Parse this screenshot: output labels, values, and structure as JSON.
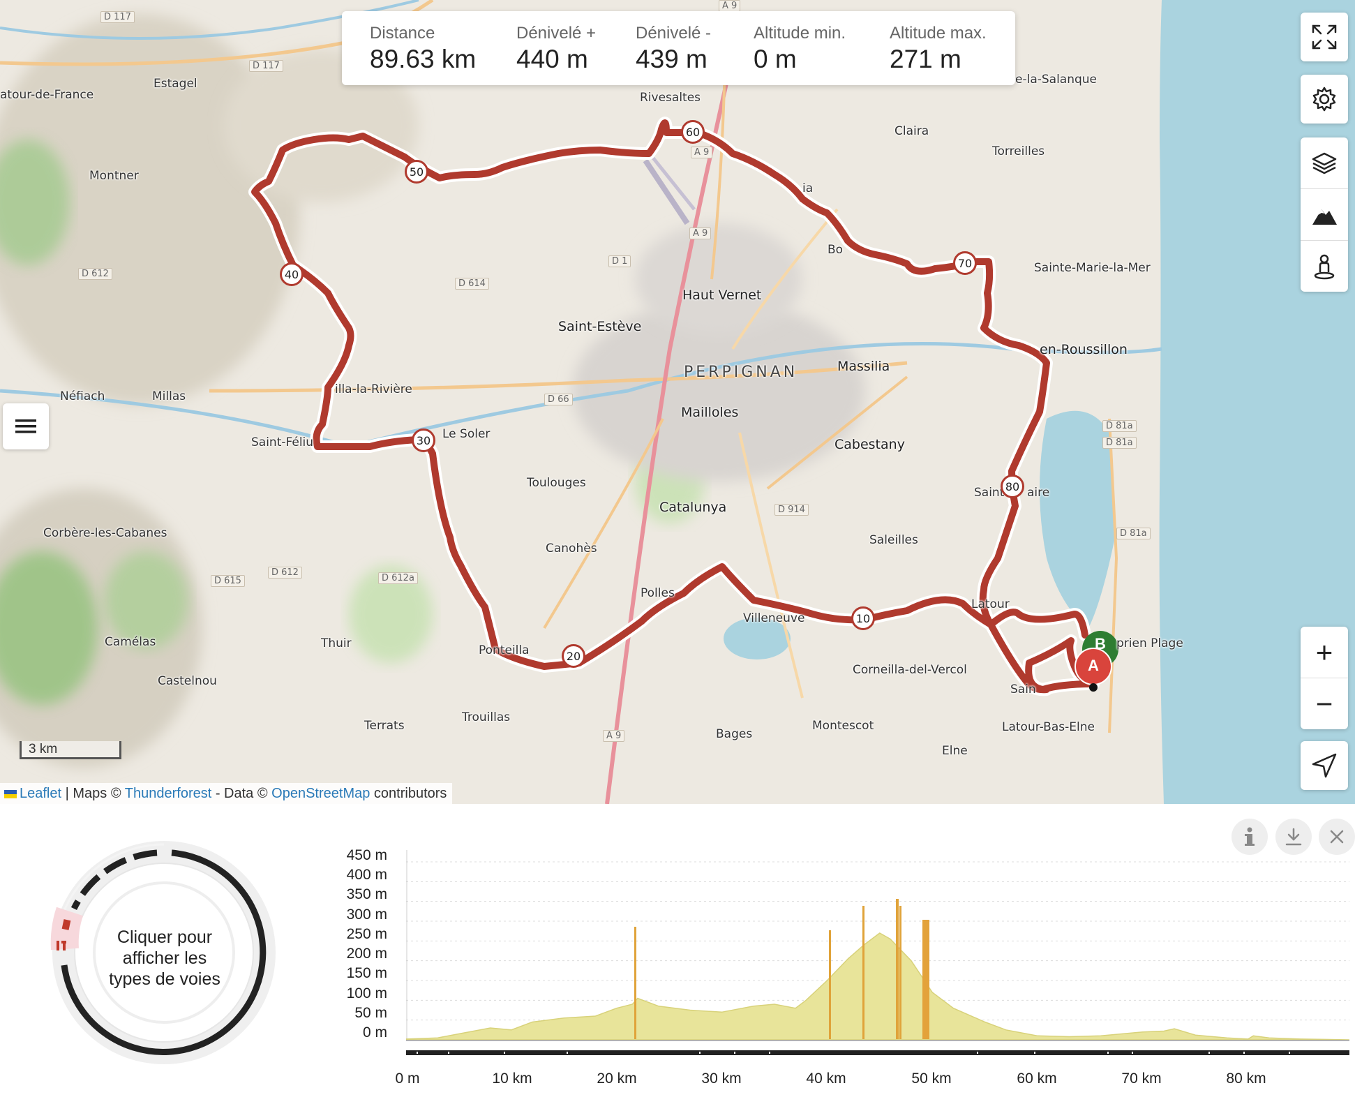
{
  "stats": {
    "distance": {
      "label": "Distance",
      "value": "89.63 km"
    },
    "gain": {
      "label": "Dénivelé +",
      "value": "440 m"
    },
    "loss": {
      "label": "Dénivelé -",
      "value": "439 m"
    },
    "alt_min": {
      "label": "Altitude min.",
      "value": "0 m"
    },
    "alt_max": {
      "label": "Altitude max.",
      "value": "271 m"
    }
  },
  "map": {
    "places": [
      {
        "name": "Estagel"
      },
      {
        "name": "atour-de-France"
      },
      {
        "name": "Montner"
      },
      {
        "name": "Rivesaltes"
      },
      {
        "name": "Claira"
      },
      {
        "name": "Torreilles"
      },
      {
        "name": "e-la-Salanque"
      },
      {
        "name": "Sainte-Marie-la-Mer"
      },
      {
        "name": "Haut Vernet"
      },
      {
        "name": "Saint-Estève"
      },
      {
        "name": "PERPIGNAN"
      },
      {
        "name": "Massilia"
      },
      {
        "name": "en-Roussillon"
      },
      {
        "name": "Néfiach"
      },
      {
        "name": "Millas"
      },
      {
        "name": "illa-la-Rivière"
      },
      {
        "name": "Saint-Féliu"
      },
      {
        "name": "Le Soler"
      },
      {
        "name": "Mailloles"
      },
      {
        "name": "Cabestany"
      },
      {
        "name": "Toulouges"
      },
      {
        "name": "Catalunya"
      },
      {
        "name": "Corbère-les-Cabanes"
      },
      {
        "name": "Canohès"
      },
      {
        "name": "Saleilles"
      },
      {
        "name": "Saint"
      },
      {
        "name": "aire"
      },
      {
        "name": "Polles"
      },
      {
        "name": "Villeneuve"
      },
      {
        "name": "Latour"
      },
      {
        "name": "Camélas"
      },
      {
        "name": "Thuir"
      },
      {
        "name": "Ponteilla"
      },
      {
        "name": "Castelnou"
      },
      {
        "name": "Corneilla-del-Vercol"
      },
      {
        "name": "Sain"
      },
      {
        "name": "Latour-Bas-Elne"
      },
      {
        "name": "Terrats"
      },
      {
        "name": "Trouillas"
      },
      {
        "name": "Montescot"
      },
      {
        "name": "Bages"
      },
      {
        "name": "Elne"
      },
      {
        "name": "prien Plage"
      },
      {
        "name": "Bo"
      },
      {
        "name": "ia"
      }
    ],
    "roads": [
      "D 117",
      "D 117",
      "D 612",
      "D 614",
      "D 1",
      "A 9",
      "A 9",
      "D 66",
      "D 914",
      "D 612",
      "D 612a",
      "D 615",
      "A 9",
      "D 81a",
      "D 81a",
      "D 81a",
      "A 9"
    ],
    "km_markers": [
      "10",
      "20",
      "30",
      "40",
      "50",
      "60",
      "70",
      "80"
    ],
    "start_marker": "A",
    "end_marker": "B",
    "route_color": "#b03a2e",
    "sea_color": "#aad3df",
    "scale": "3 km"
  },
  "attribution": {
    "leaflet": "Leaflet",
    "sep1": " | Maps © ",
    "thunderforest": "Thunderforest",
    "sep2": " - Data © ",
    "osm": "OpenStreetMap",
    "contrib": " contributors"
  },
  "controls": {
    "fullscreen_icon": "fullscreen-icon",
    "settings_icon": "gear-icon",
    "layers_icon": "layers-icon",
    "elevation_icon": "mountain-icon",
    "pegman_icon": "person-icon",
    "zoom_in": "+",
    "zoom_out": "−",
    "locate_icon": "navigation-arrow-icon",
    "menu_icon": "hamburger-icon"
  },
  "donut": {
    "label_line1": "Cliquer pour",
    "label_line2": "afficher les",
    "label_line3": "types de voies"
  },
  "bottom_tools": [
    "info-icon",
    "download-icon",
    "close-icon"
  ],
  "chart_data": {
    "type": "area",
    "title": "",
    "xlabel": "",
    "ylabel": "",
    "x_ticks": [
      "0 m",
      "10 km",
      "20 km",
      "30 km",
      "40 km",
      "50 km",
      "60 km",
      "70 km",
      "80 km"
    ],
    "y_ticks": [
      "450 m",
      "400 m",
      "350 m",
      "300 m",
      "250 m",
      "200 m",
      "150 m",
      "100 m",
      "50 m",
      "0 m"
    ],
    "xlim": [
      0,
      89.63
    ],
    "ylim": [
      0,
      450
    ],
    "grid": true,
    "fill_color": "#e8e49a",
    "series": [
      {
        "x": [
          0,
          3,
          5,
          8,
          10,
          12,
          15,
          18,
          20,
          21.5,
          22,
          24,
          27,
          30,
          33,
          35,
          37,
          38,
          40,
          42,
          43.5,
          45,
          46,
          48,
          50,
          52,
          55,
          57,
          59,
          60,
          63,
          66,
          68,
          70,
          72,
          73,
          75,
          78,
          80,
          80.5,
          82,
          85,
          89.63
        ],
        "y": [
          2,
          5,
          15,
          30,
          25,
          45,
          55,
          60,
          80,
          90,
          105,
          85,
          75,
          70,
          85,
          90,
          80,
          100,
          150,
          205,
          240,
          270,
          255,
          200,
          120,
          80,
          45,
          25,
          15,
          10,
          8,
          10,
          15,
          20,
          22,
          28,
          12,
          5,
          2,
          10,
          5,
          2,
          0
        ]
      }
    ]
  }
}
